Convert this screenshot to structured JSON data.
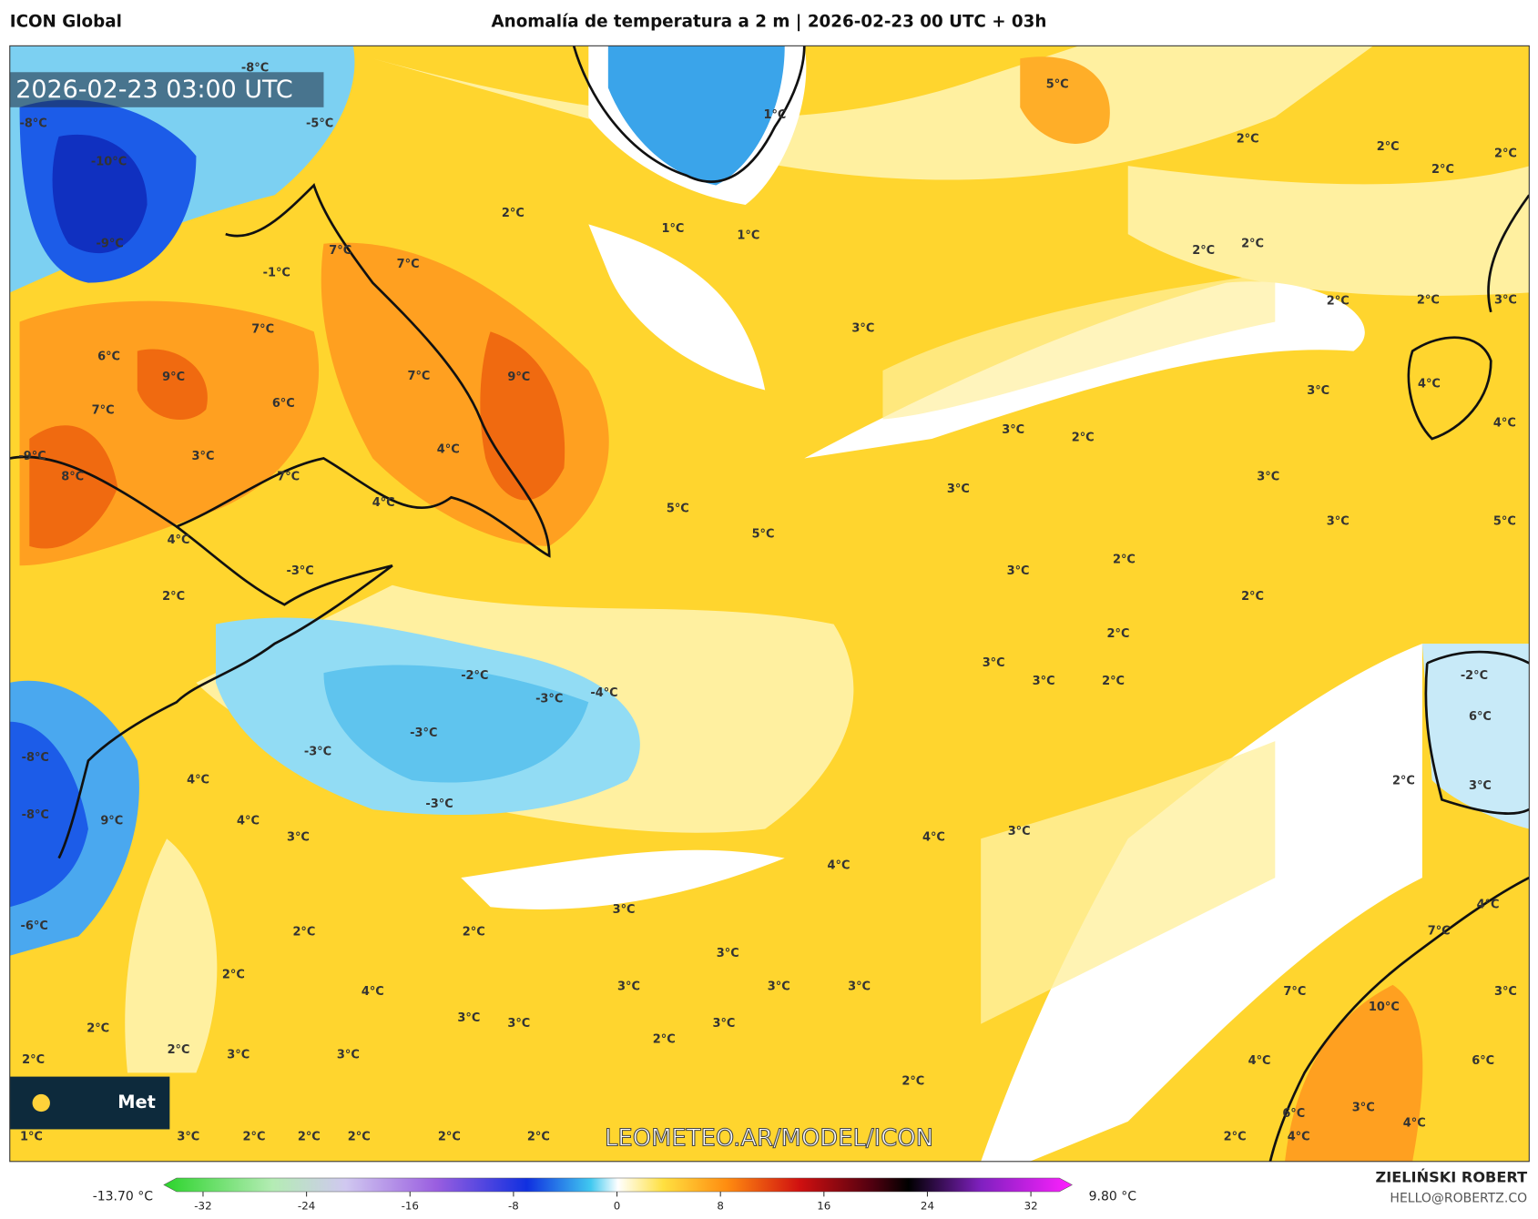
{
  "header": {
    "model": "ICON Global",
    "title": "Anomalía de temperatura a 2 m | 2026-02-23 00 UTC + 03h"
  },
  "map": {
    "timestamp": "2026-02-23 03:00 UTC",
    "watermark": "LEOMETEO.AR/MODEL/ICON",
    "logo": "Met",
    "labels": [
      "5°C",
      "2°C",
      "2°C",
      "2°C",
      "2°C",
      "-8°C",
      "-5°C",
      "-8°C",
      "-10°C",
      "-9°C",
      "2°C",
      "1°C",
      "1°C",
      "1°C",
      "-1°C",
      "7°C",
      "7°C",
      "2°C",
      "2°C",
      "2°C",
      "2°C",
      "3°C",
      "3°C",
      "6°C",
      "7°C",
      "9°C",
      "9°C",
      "7°C",
      "7°C",
      "6°C",
      "3°C",
      "4°C",
      "3°C",
      "2°C",
      "4°C",
      "-9°C",
      "3°C",
      "4°C",
      "8°C",
      "7°C",
      "4°C",
      "3°C",
      "3°C",
      "5°C",
      "5°C",
      "3°C",
      "5°C",
      "4°C",
      "2°C",
      "3°C",
      "-3°C",
      "2°C",
      "2°C",
      "2°C",
      "3°C",
      "3°C",
      "2°C",
      "-2°C",
      "-3°C",
      "-4°C",
      "-2°C",
      "6°C",
      "-3°C",
      "-3°C",
      "-8°C",
      "4°C",
      "2°C",
      "3°C",
      "-8°C",
      "9°C",
      "4°C",
      "-3°C",
      "3°C",
      "4°C",
      "3°C",
      "4°C",
      "-6°C",
      "3°C",
      "4°C",
      "7°C",
      "2°C",
      "2°C",
      "3°C",
      "2°C",
      "4°C",
      "3°C",
      "3°C",
      "3°C",
      "7°C",
      "3°C",
      "10°C",
      "3°C",
      "3°C",
      "3°C",
      "2°C",
      "2°C",
      "2°C",
      "3°C",
      "3°C",
      "2°C",
      "4°C",
      "6°C",
      "2°C",
      "3°C",
      "6°C",
      "4°C",
      "1°C",
      "3°C",
      "2°C",
      "2°C",
      "2°C",
      "2°C",
      "2°C",
      "2°C",
      "4°C"
    ]
  },
  "colorbar": {
    "min_label": "-13.70 °C",
    "max_label": "9.80 °C",
    "ticks": [
      -32,
      -24,
      -16,
      -8,
      0,
      8,
      16,
      24,
      32
    ]
  },
  "footer": {
    "author": "ZIELIŃSKI ROBERT",
    "email": "HELLO@ROBERTZ.CO"
  }
}
